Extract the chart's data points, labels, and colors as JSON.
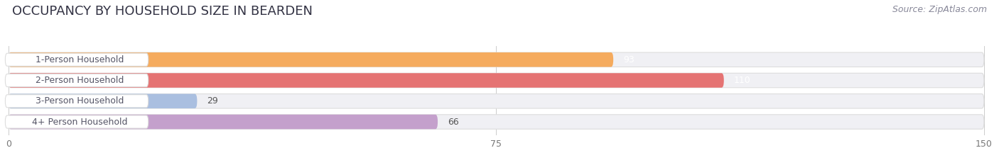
{
  "title": "OCCUPANCY BY HOUSEHOLD SIZE IN BEARDEN",
  "source": "Source: ZipAtlas.com",
  "categories": [
    "1-Person Household",
    "2-Person Household",
    "3-Person Household",
    "4+ Person Household"
  ],
  "values": [
    93,
    110,
    29,
    66
  ],
  "bar_colors": [
    "#f5ab5e",
    "#e57373",
    "#aabfe0",
    "#c4a0cc"
  ],
  "value_colors": [
    "white",
    "white",
    "#555555",
    "#555555"
  ],
  "xlim": [
    0,
    150
  ],
  "xticks": [
    0,
    75,
    150
  ],
  "background_color": "#ffffff",
  "bar_bg_color": "#f0f0f4",
  "bar_bg_edge": "#dddddd",
  "title_fontsize": 13,
  "source_fontsize": 9,
  "label_fontsize": 9,
  "value_fontsize": 9
}
